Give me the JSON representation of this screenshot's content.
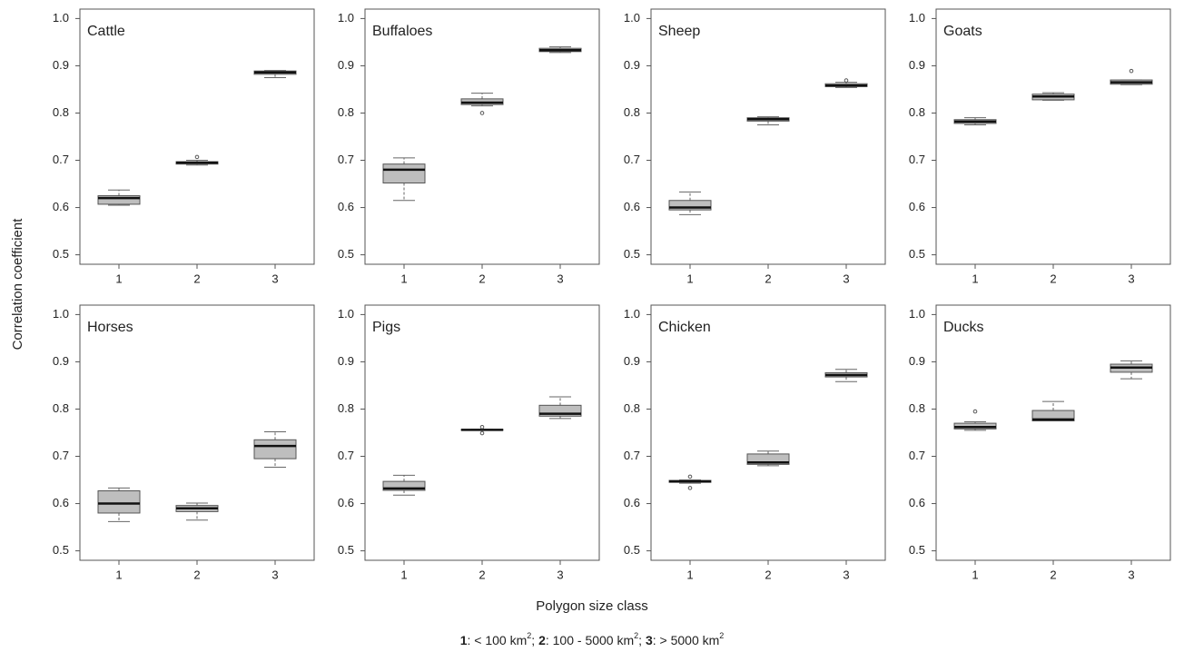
{
  "chart_data": [
    {
      "type": "box",
      "title": "Cattle",
      "color": "#bebebe",
      "categories": [
        "1",
        "2",
        "3"
      ],
      "ylim": [
        0.48,
        1.02
      ],
      "yticks": [
        0.5,
        0.6,
        0.7,
        0.8,
        0.9,
        {
          "value": 1,
          "label": "1.0"
        }
      ],
      "boxes": [
        {
          "min": 0.605,
          "q1": 0.607,
          "median": 0.62,
          "q3": 0.625,
          "max": 0.637,
          "outliers": []
        },
        {
          "min": 0.69,
          "q1": 0.692,
          "median": 0.695,
          "q3": 0.697,
          "max": 0.7,
          "outliers": [
            0.707
          ]
        },
        {
          "min": 0.875,
          "q1": 0.882,
          "median": 0.886,
          "q3": 0.889,
          "max": 0.89,
          "outliers": []
        }
      ]
    },
    {
      "type": "box",
      "title": "Buffaloes",
      "color": "#bebebe",
      "categories": [
        "1",
        "2",
        "3"
      ],
      "ylim": [
        0.48,
        1.02
      ],
      "yticks": [
        0.5,
        0.6,
        0.7,
        0.8,
        0.9,
        {
          "value": 1,
          "label": "1.0"
        }
      ],
      "boxes": [
        {
          "min": 0.615,
          "q1": 0.652,
          "median": 0.68,
          "q3": 0.692,
          "max": 0.705,
          "outliers": []
        },
        {
          "min": 0.815,
          "q1": 0.818,
          "median": 0.822,
          "q3": 0.83,
          "max": 0.842,
          "outliers": [
            0.8
          ]
        },
        {
          "min": 0.928,
          "q1": 0.93,
          "median": 0.933,
          "q3": 0.937,
          "max": 0.94,
          "outliers": []
        }
      ]
    },
    {
      "type": "box",
      "title": "Sheep",
      "color": "#bebebe",
      "categories": [
        "1",
        "2",
        "3"
      ],
      "ylim": [
        0.48,
        1.02
      ],
      "yticks": [
        0.5,
        0.6,
        0.7,
        0.8,
        0.9,
        {
          "value": 1,
          "label": "1.0"
        }
      ],
      "boxes": [
        {
          "min": 0.585,
          "q1": 0.595,
          "median": 0.6,
          "q3": 0.615,
          "max": 0.633,
          "outliers": []
        },
        {
          "min": 0.775,
          "q1": 0.783,
          "median": 0.787,
          "q3": 0.79,
          "max": 0.792,
          "outliers": []
        },
        {
          "min": 0.854,
          "q1": 0.856,
          "median": 0.858,
          "q3": 0.862,
          "max": 0.865,
          "outliers": [
            0.869
          ]
        }
      ]
    },
    {
      "type": "box",
      "title": "Goats",
      "color": "#bebebe",
      "categories": [
        "1",
        "2",
        "3"
      ],
      "ylim": [
        0.48,
        1.02
      ],
      "yticks": [
        0.5,
        0.6,
        0.7,
        0.8,
        0.9,
        {
          "value": 1,
          "label": "1.0"
        }
      ],
      "boxes": [
        {
          "min": 0.775,
          "q1": 0.778,
          "median": 0.782,
          "q3": 0.786,
          "max": 0.79,
          "outliers": []
        },
        {
          "min": 0.827,
          "q1": 0.828,
          "median": 0.835,
          "q3": 0.84,
          "max": 0.843,
          "outliers": []
        },
        {
          "min": 0.86,
          "q1": 0.861,
          "median": 0.865,
          "q3": 0.87,
          "max": 0.87,
          "outliers": [
            0.889
          ]
        }
      ]
    },
    {
      "type": "box",
      "title": "Horses",
      "color": "#bebebe",
      "categories": [
        "1",
        "2",
        "3"
      ],
      "ylim": [
        0.48,
        1.02
      ],
      "yticks": [
        0.5,
        0.6,
        0.7,
        0.8,
        0.9,
        {
          "value": 1,
          "label": "1.0"
        }
      ],
      "boxes": [
        {
          "min": 0.562,
          "q1": 0.58,
          "median": 0.6,
          "q3": 0.627,
          "max": 0.633,
          "outliers": []
        },
        {
          "min": 0.565,
          "q1": 0.583,
          "median": 0.59,
          "q3": 0.596,
          "max": 0.601,
          "outliers": []
        },
        {
          "min": 0.677,
          "q1": 0.695,
          "median": 0.722,
          "q3": 0.735,
          "max": 0.752,
          "outliers": []
        }
      ]
    },
    {
      "type": "box",
      "title": "Pigs",
      "color": "#bebebe",
      "categories": [
        "1",
        "2",
        "3"
      ],
      "ylim": [
        0.48,
        1.02
      ],
      "yticks": [
        0.5,
        0.6,
        0.7,
        0.8,
        0.9,
        {
          "value": 1,
          "label": "1.0"
        }
      ],
      "boxes": [
        {
          "min": 0.618,
          "q1": 0.628,
          "median": 0.632,
          "q3": 0.647,
          "max": 0.66,
          "outliers": []
        },
        {
          "min": 0.755,
          "q1": 0.755,
          "median": 0.756,
          "q3": 0.757,
          "max": 0.757,
          "outliers": [
            0.762,
            0.749
          ]
        },
        {
          "min": 0.78,
          "q1": 0.785,
          "median": 0.79,
          "q3": 0.808,
          "max": 0.826,
          "outliers": []
        }
      ]
    },
    {
      "type": "box",
      "title": "Chicken",
      "color": "#bebebe",
      "categories": [
        "1",
        "2",
        "3"
      ],
      "ylim": [
        0.48,
        1.02
      ],
      "yticks": [
        0.5,
        0.6,
        0.7,
        0.8,
        0.9,
        {
          "value": 1,
          "label": "1.0"
        }
      ],
      "boxes": [
        {
          "min": 0.643,
          "q1": 0.645,
          "median": 0.647,
          "q3": 0.649,
          "max": 0.65,
          "outliers": [
            0.657,
            0.633
          ]
        },
        {
          "min": 0.68,
          "q1": 0.683,
          "median": 0.687,
          "q3": 0.705,
          "max": 0.711,
          "outliers": []
        },
        {
          "min": 0.858,
          "q1": 0.868,
          "median": 0.872,
          "q3": 0.877,
          "max": 0.884,
          "outliers": []
        }
      ]
    },
    {
      "type": "box",
      "title": "Ducks",
      "color": "#bebebe",
      "categories": [
        "1",
        "2",
        "3"
      ],
      "ylim": [
        0.48,
        1.02
      ],
      "yticks": [
        0.5,
        0.6,
        0.7,
        0.8,
        0.9,
        {
          "value": 1,
          "label": "1.0"
        }
      ],
      "boxes": [
        {
          "min": 0.755,
          "q1": 0.758,
          "median": 0.762,
          "q3": 0.77,
          "max": 0.773,
          "outliers": [
            0.795
          ]
        },
        {
          "min": 0.775,
          "q1": 0.775,
          "median": 0.778,
          "q3": 0.797,
          "max": 0.816,
          "outliers": []
        },
        {
          "min": 0.864,
          "q1": 0.878,
          "median": 0.888,
          "q3": 0.895,
          "max": 0.902,
          "outliers": []
        }
      ]
    }
  ],
  "shared": {
    "y_label": "Correlation coefficient",
    "x_label": "Polygon size class",
    "footnote": [
      {
        "key": "1",
        "text": ": < 100 km",
        "sup": "2",
        "after": "; "
      },
      {
        "key": "2",
        "text": ": 100 - 5000 km",
        "sup": "2",
        "after": "; "
      },
      {
        "key": "3",
        "text": ": > 5000 km",
        "sup": "2"
      }
    ]
  }
}
